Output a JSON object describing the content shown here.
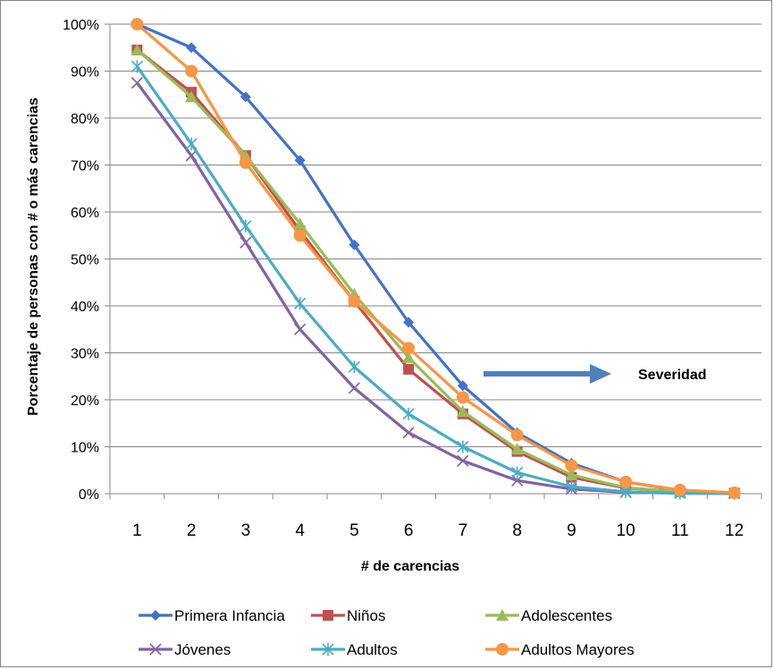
{
  "chart_data": {
    "type": "line",
    "title": "",
    "xlabel": "# de carencias",
    "ylabel": "Porcentaje de personas con # o más carencias",
    "x": [
      1,
      2,
      3,
      4,
      5,
      6,
      7,
      8,
      9,
      10,
      11,
      12
    ],
    "ylim": [
      0,
      100
    ],
    "yticks": [
      0,
      10,
      20,
      30,
      40,
      50,
      60,
      70,
      80,
      90,
      100
    ],
    "ytick_labels": [
      "0%",
      "10%",
      "20%",
      "30%",
      "40%",
      "50%",
      "60%",
      "70%",
      "80%",
      "90%",
      "100%"
    ],
    "grid": "horizontal",
    "legend_position": "bottom",
    "series": [
      {
        "name": "Primera Infancia",
        "color": "#4472C4",
        "marker": "diamond",
        "values": [
          100,
          95,
          84.5,
          71,
          53,
          36.5,
          23,
          13,
          6.5,
          2.5,
          0.7,
          0.2
        ]
      },
      {
        "name": "Niños",
        "color": "#C0504D",
        "marker": "square",
        "values": [
          94.5,
          85.5,
          72,
          56,
          41,
          26.5,
          17,
          9,
          3.5,
          1.2,
          0.4,
          0.1
        ]
      },
      {
        "name": "Adolescentes",
        "color": "#9BBB59",
        "marker": "triangle",
        "values": [
          94.5,
          84.5,
          72,
          57.5,
          42.5,
          29,
          17.5,
          9.5,
          4,
          1.3,
          0.4,
          0.1
        ]
      },
      {
        "name": "Jóvenes",
        "color": "#8064A2",
        "marker": "x",
        "values": [
          87.5,
          72,
          53.5,
          35,
          22.5,
          13,
          7,
          2.8,
          1,
          0.3,
          0.1,
          0.05
        ]
      },
      {
        "name": "Adultos",
        "color": "#4BACC6",
        "marker": "star",
        "values": [
          91,
          74.5,
          57,
          40.5,
          27,
          17,
          10,
          4.5,
          1.5,
          0.4,
          0.1,
          0.05
        ]
      },
      {
        "name": "Adultos Mayores",
        "color": "#F79646",
        "marker": "circle",
        "values": [
          100,
          90,
          70.5,
          55,
          41,
          31,
          20.5,
          12.5,
          6,
          2.5,
          0.8,
          0.2
        ]
      }
    ],
    "annotation": {
      "text": "Severidad",
      "arrow": "right"
    }
  }
}
